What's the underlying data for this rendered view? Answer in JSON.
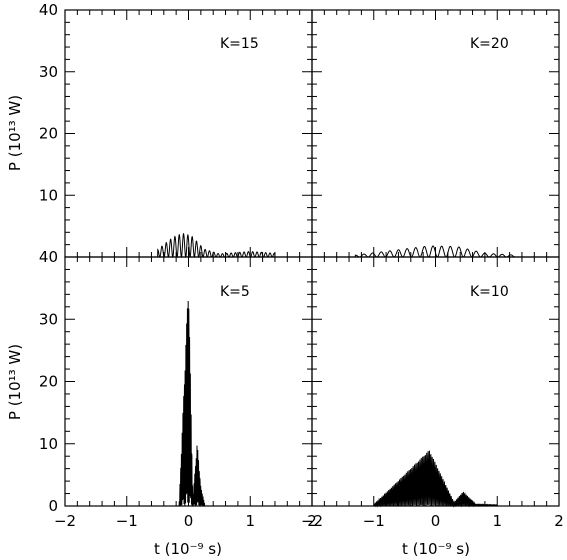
{
  "colors": {
    "line": "#000000",
    "background": "#ffffff"
  },
  "axes": {
    "ylabel": "P (10¹³ W)",
    "xlabel": "t (10⁻⁹ s)"
  },
  "chart_data": [
    {
      "type": "line",
      "panel": "top-left",
      "label": "K=15",
      "xlim": [
        -2,
        2
      ],
      "ylim": [
        0,
        40
      ],
      "xticks": [],
      "yticks": [
        "10",
        "20",
        "30",
        "40"
      ],
      "series": [
        {
          "envelope": [
            {
              "t": -0.5,
              "p": 1.2
            },
            {
              "t": -0.25,
              "p": 3.2
            },
            {
              "t": -0.1,
              "p": 3.8
            },
            {
              "t": 0.05,
              "p": 3.4
            },
            {
              "t": 0.25,
              "p": 1.3
            },
            {
              "t": 0.5,
              "p": 0.5
            },
            {
              "t": 1.0,
              "p": 0.9
            },
            {
              "t": 1.4,
              "p": 0.6
            }
          ],
          "peak_spacing": 0.07
        }
      ]
    },
    {
      "type": "line",
      "panel": "top-right",
      "label": "K=20",
      "xlim": [
        -2,
        2
      ],
      "ylim": [
        0,
        40
      ],
      "xticks": [],
      "yticks": [],
      "series": [
        {
          "envelope": [
            {
              "t": -1.3,
              "p": 0.3
            },
            {
              "t": -0.5,
              "p": 1.3
            },
            {
              "t": -0.1,
              "p": 1.8
            },
            {
              "t": 0.35,
              "p": 1.7
            },
            {
              "t": 0.8,
              "p": 0.6
            },
            {
              "t": 1.3,
              "p": 0.3
            }
          ],
          "peak_spacing": 0.14
        }
      ]
    },
    {
      "type": "line",
      "panel": "bottom-left",
      "label": "K=5",
      "xlim": [
        -2,
        2
      ],
      "ylim": [
        0,
        40
      ],
      "xticks": [
        "−2",
        "−1",
        "0",
        "1",
        "2"
      ],
      "yticks": [
        "0",
        "10",
        "20",
        "30",
        "40"
      ],
      "series": [
        {
          "envelope": [
            {
              "t": -0.15,
              "p": 0.6
            },
            {
              "t": 0.0,
              "p": 36.5
            },
            {
              "t": 0.07,
              "p": 1.0
            },
            {
              "t": 0.14,
              "p": 10.2
            },
            {
              "t": 0.2,
              "p": 3.0
            },
            {
              "t": 0.26,
              "p": 0.4
            }
          ],
          "peak_spacing": 0.012
        }
      ]
    },
    {
      "type": "line",
      "panel": "bottom-right",
      "label": "K=10",
      "xlim": [
        -2,
        2
      ],
      "ylim": [
        0,
        40
      ],
      "xticks": [
        "−2",
        "−1",
        "0",
        "1",
        "2"
      ],
      "yticks": [],
      "series": [
        {
          "envelope": [
            {
              "t": -1.0,
              "p": 0.2
            },
            {
              "t": -0.1,
              "p": 9.0
            },
            {
              "t": 0.3,
              "p": 0.6
            },
            {
              "t": 0.45,
              "p": 2.3
            },
            {
              "t": 0.65,
              "p": 0.3
            },
            {
              "t": 1.0,
              "p": 0.2
            }
          ],
          "peak_spacing": 0.022
        }
      ]
    }
  ]
}
